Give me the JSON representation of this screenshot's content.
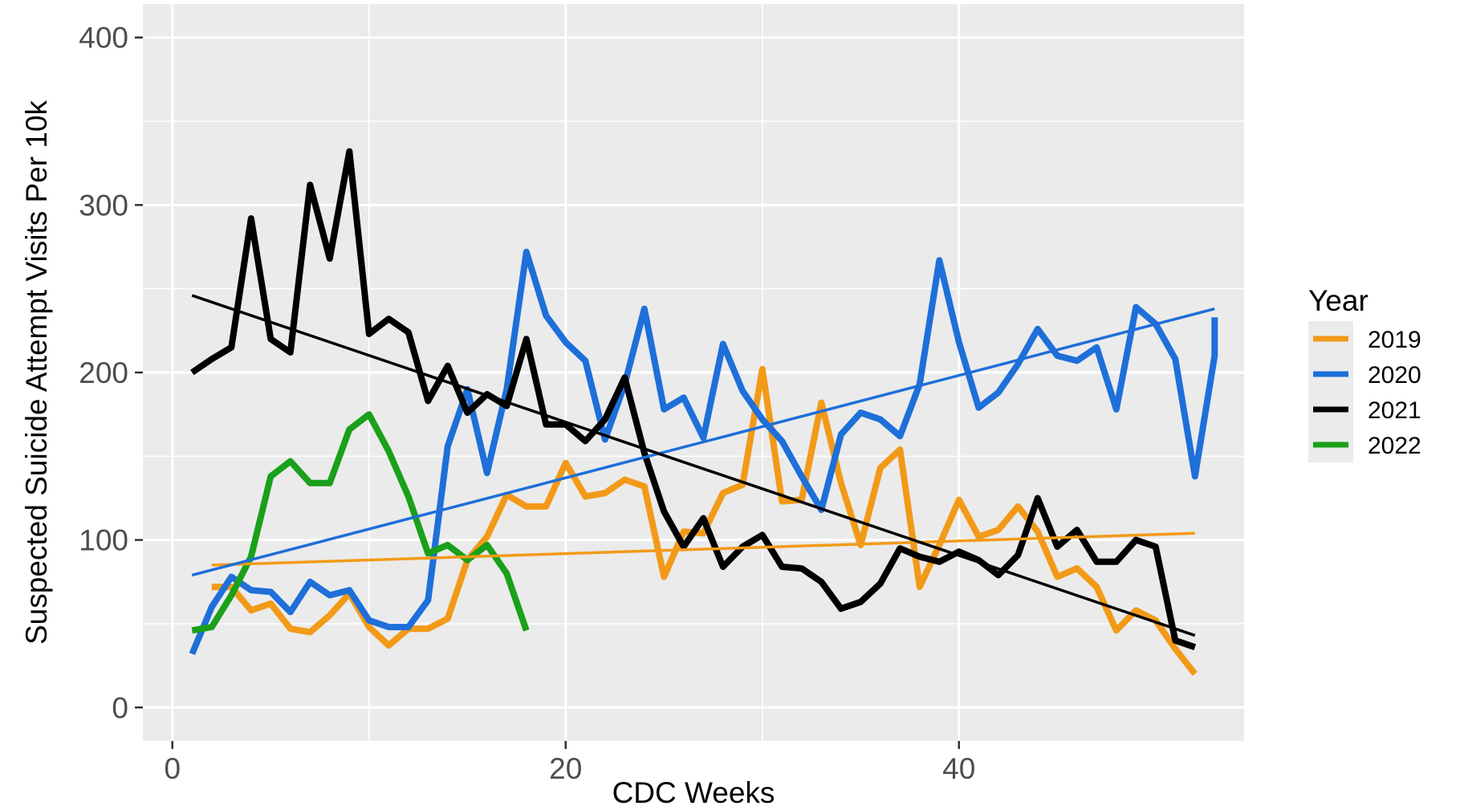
{
  "chart_data": {
    "type": "line",
    "xlabel": "CDC Weeks",
    "ylabel": "Suspected Suicide Attempt Visits Per 10k",
    "xlim": [
      -1.5,
      54.5
    ],
    "ylim": [
      -20,
      420
    ],
    "x_ticks": [
      0,
      20,
      40
    ],
    "y_ticks": [
      0,
      100,
      200,
      300,
      400
    ],
    "grid": true,
    "legend": {
      "title": "Year",
      "placement": "right"
    },
    "series": [
      {
        "name": "2019",
        "color": "#F29A18",
        "x": [
          2,
          3,
          4,
          5,
          6,
          7,
          8,
          9,
          10,
          11,
          12,
          13,
          14,
          15,
          16,
          17,
          18,
          19,
          20,
          21,
          22,
          23,
          24,
          25,
          26,
          27,
          28,
          29,
          30,
          31,
          32,
          33,
          34,
          35,
          36,
          37,
          38,
          39,
          40,
          41,
          42,
          43,
          44,
          45,
          46,
          47,
          48,
          49,
          50,
          51,
          52
        ],
        "values": [
          72,
          72,
          58,
          62,
          47,
          45,
          55,
          68,
          48,
          37,
          47,
          47,
          53,
          88,
          102,
          127,
          120,
          120,
          146,
          126,
          128,
          136,
          132,
          78,
          105,
          104,
          128,
          133,
          202,
          123,
          124,
          182,
          134,
          97,
          143,
          154,
          72,
          97,
          124,
          102,
          106,
          120,
          105,
          78,
          83,
          72,
          46,
          58,
          52,
          35,
          20
        ],
        "trend": {
          "x": [
            2,
            52
          ],
          "values": [
            85,
            104
          ]
        }
      },
      {
        "name": "2020",
        "color": "#1E6FD9",
        "x": [
          1,
          2,
          3,
          4,
          5,
          6,
          7,
          8,
          9,
          10,
          11,
          12,
          13,
          14,
          15,
          16,
          17,
          18,
          19,
          20,
          21,
          22,
          23,
          24,
          25,
          26,
          27,
          28,
          29,
          30,
          31,
          32,
          33,
          34,
          35,
          36,
          37,
          38,
          39,
          40,
          41,
          42,
          43,
          44,
          45,
          46,
          47,
          48,
          49,
          50,
          51,
          52,
          53,
          53
        ],
        "values": [
          32,
          60,
          78,
          70,
          69,
          57,
          75,
          67,
          70,
          52,
          48,
          48,
          64,
          156,
          190,
          140,
          190,
          272,
          234,
          218,
          207,
          160,
          193,
          238,
          178,
          185,
          161,
          217,
          189,
          172,
          159,
          138,
          118,
          163,
          176,
          172,
          162,
          193,
          267,
          218,
          179,
          188,
          205,
          226,
          210,
          207,
          215,
          178,
          239,
          229,
          208,
          138,
          210,
          233
        ],
        "trend": {
          "x": [
            1,
            53
          ],
          "values": [
            79,
            238
          ]
        }
      },
      {
        "name": "2021",
        "color": "#000000",
        "x": [
          1,
          2,
          3,
          4,
          5,
          6,
          7,
          8,
          9,
          10,
          11,
          12,
          13,
          14,
          15,
          16,
          17,
          18,
          19,
          20,
          21,
          22,
          23,
          24,
          25,
          26,
          27,
          28,
          29,
          30,
          31,
          32,
          33,
          34,
          35,
          36,
          37,
          38,
          39,
          40,
          41,
          42,
          43,
          44,
          45,
          46,
          47,
          48,
          49,
          50,
          51,
          52
        ],
        "values": [
          200,
          208,
          215,
          292,
          220,
          212,
          312,
          268,
          332,
          223,
          232,
          224,
          183,
          204,
          176,
          187,
          180,
          220,
          169,
          169,
          159,
          172,
          197,
          152,
          117,
          96,
          113,
          84,
          96,
          103,
          84,
          83,
          75,
          59,
          63,
          74,
          95,
          90,
          87,
          93,
          88,
          79,
          91,
          125,
          96,
          106,
          87,
          87,
          100,
          96,
          40,
          36
        ],
        "trend": {
          "x": [
            1,
            52
          ],
          "values": [
            246,
            43
          ]
        }
      },
      {
        "name": "2022",
        "color": "#1AA01A",
        "x": [
          1,
          2,
          3,
          4,
          5,
          6,
          7,
          8,
          9,
          10,
          11,
          12,
          13,
          14,
          15,
          16,
          17,
          18
        ],
        "values": [
          46,
          48,
          67,
          90,
          138,
          147,
          134,
          134,
          166,
          175,
          153,
          126,
          92,
          97,
          88,
          97,
          80,
          46
        ]
      }
    ]
  }
}
